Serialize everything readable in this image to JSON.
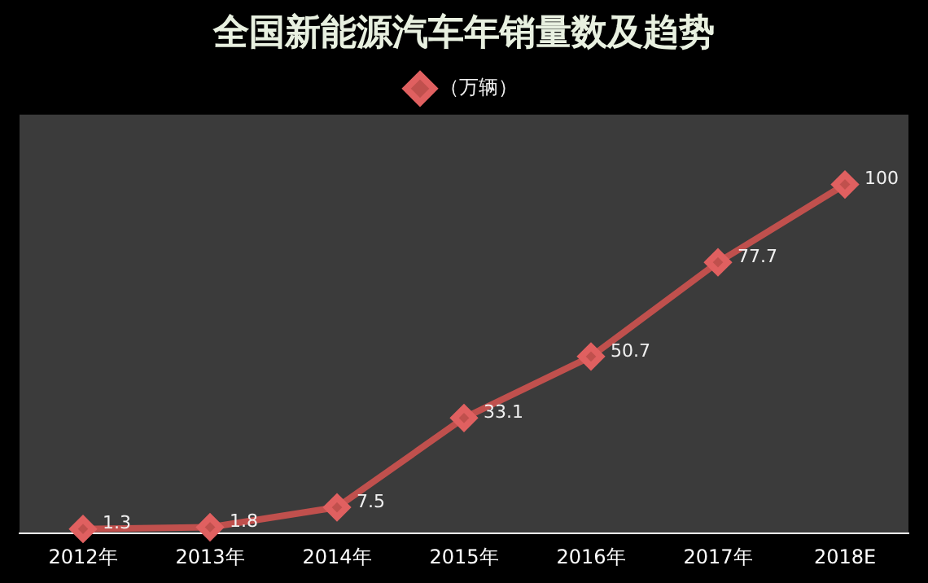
{
  "chart_data": {
    "type": "line",
    "title": "全国新能源汽车年销量数及趋势",
    "categories": [
      "2012年",
      "2013年",
      "2014年",
      "2015年",
      "2016年",
      "2017年",
      "2018E"
    ],
    "series": [
      {
        "name": "（万辆）",
        "color": "#c0504d",
        "values": [
          1.3,
          1.8,
          7.5,
          33.1,
          50.7,
          77.7,
          100
        ]
      }
    ],
    "marker": "diamond",
    "line_style": "solid",
    "legend": "top",
    "grid": false,
    "data_labels": true
  }
}
